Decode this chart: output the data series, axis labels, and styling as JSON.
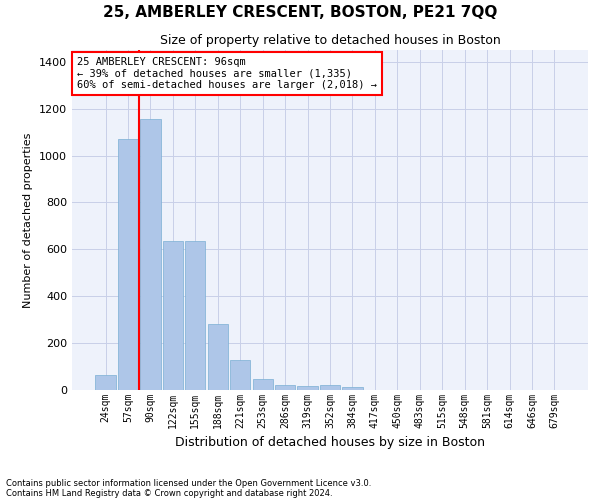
{
  "title": "25, AMBERLEY CRESCENT, BOSTON, PE21 7QQ",
  "subtitle": "Size of property relative to detached houses in Boston",
  "xlabel": "Distribution of detached houses by size in Boston",
  "ylabel": "Number of detached properties",
  "bar_color": "#aec6e8",
  "bar_edge_color": "#7bafd4",
  "categories": [
    "24sqm",
    "57sqm",
    "90sqm",
    "122sqm",
    "155sqm",
    "188sqm",
    "221sqm",
    "253sqm",
    "286sqm",
    "319sqm",
    "352sqm",
    "384sqm",
    "417sqm",
    "450sqm",
    "483sqm",
    "515sqm",
    "548sqm",
    "581sqm",
    "614sqm",
    "646sqm",
    "679sqm"
  ],
  "values": [
    63,
    1070,
    1155,
    635,
    635,
    280,
    130,
    45,
    22,
    18,
    22,
    12,
    0,
    0,
    0,
    0,
    0,
    0,
    0,
    0,
    0
  ],
  "ylim": [
    0,
    1450
  ],
  "yticks": [
    0,
    200,
    400,
    600,
    800,
    1000,
    1200,
    1400
  ],
  "property_label": "25 AMBERLEY CRESCENT: 96sqm",
  "annotation_line1": "← 39% of detached houses are smaller (1,335)",
  "annotation_line2": "60% of semi-detached houses are larger (2,018) →",
  "vline_x": 2.0,
  "footnote1": "Contains HM Land Registry data © Crown copyright and database right 2024.",
  "footnote2": "Contains public sector information licensed under the Open Government Licence v3.0.",
  "bg_color": "#eef2fb",
  "grid_color": "#c8cfe8"
}
